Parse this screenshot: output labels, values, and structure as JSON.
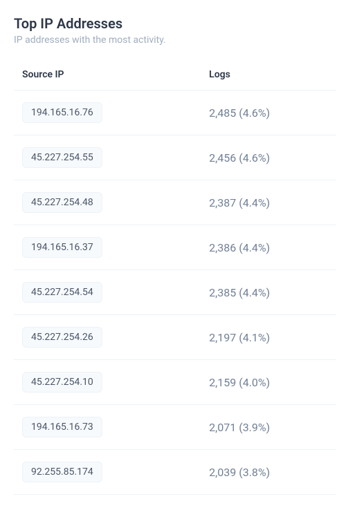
{
  "header": {
    "title": "Top IP Addresses",
    "subtitle": "IP addresses with the most activity."
  },
  "table": {
    "columns": {
      "source_ip": "Source IP",
      "logs": "Logs"
    },
    "rows": [
      {
        "ip": "194.165.16.76",
        "logs": "2,485 (4.6%)"
      },
      {
        "ip": "45.227.254.55",
        "logs": "2,456 (4.6%)"
      },
      {
        "ip": "45.227.254.48",
        "logs": "2,387 (4.4%)"
      },
      {
        "ip": "194.165.16.37",
        "logs": "2,386 (4.4%)"
      },
      {
        "ip": "45.227.254.54",
        "logs": "2,385 (4.4%)"
      },
      {
        "ip": "45.227.254.26",
        "logs": "2,197 (4.1%)"
      },
      {
        "ip": "45.227.254.10",
        "logs": "2,159 (4.0%)"
      },
      {
        "ip": "194.165.16.73",
        "logs": "2,071 (3.9%)"
      },
      {
        "ip": "92.255.85.174",
        "logs": "2,039 (3.8%)"
      }
    ]
  },
  "styling": {
    "background_color": "#ffffff",
    "title_color": "#2d3748",
    "subtitle_color": "#a0aec0",
    "badge_bg": "#f7fafc",
    "badge_border": "#edf2f7",
    "badge_text_color": "#4a5568",
    "logs_text_color": "#718096",
    "row_border_color": "#edf2f7"
  }
}
